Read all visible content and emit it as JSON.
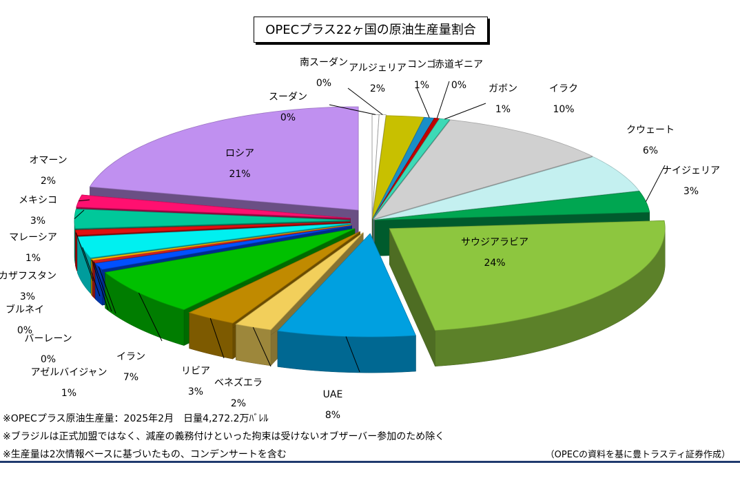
{
  "chart_data": {
    "type": "pie",
    "title": "OPECプラス22ヶ国の原油生産量割合",
    "slices": [
      {
        "name": "スーダン",
        "label": "0%",
        "value": 0.4,
        "color": "#ffffff"
      },
      {
        "name": "南スーダン",
        "label": "0%",
        "value": 0.4,
        "color": "#ffffff"
      },
      {
        "name": "アルジェリア",
        "label": "2%",
        "value": 2.2,
        "color": "#c8c000"
      },
      {
        "name": "コンゴ",
        "label": "1%",
        "value": 0.6,
        "color": "#1a8ec7"
      },
      {
        "name": "赤道ギニア",
        "label": "0%",
        "value": 0.3,
        "color": "#c00000"
      },
      {
        "name": "ガボン",
        "label": "1%",
        "value": 0.6,
        "color": "#3dd9b6"
      },
      {
        "name": "イラク",
        "label": "10%",
        "value": 10.1,
        "color": "#d0d0d0"
      },
      {
        "name": "クウェート",
        "label": "6%",
        "value": 5.9,
        "color": "#c4f0f0"
      },
      {
        "name": "ナイジェリア",
        "label": "3%",
        "value": 3.3,
        "color": "#00a651"
      },
      {
        "name": "サウジアラビア",
        "label": "24%",
        "value": 23.6,
        "color": "#8dc63f"
      },
      {
        "name": "UAE",
        "label": "8%",
        "value": 8.1,
        "color": "#00a0e0"
      },
      {
        "name": "ベネズエラ",
        "label": "2%",
        "value": 2.2,
        "color": "#f2cf5b"
      },
      {
        "name": "リビア",
        "label": "3%",
        "value": 3.0,
        "color": "#c08a00"
      },
      {
        "name": "イラン",
        "label": "7%",
        "value": 7.4,
        "color": "#00c000"
      },
      {
        "name": "アゼルバイジャン",
        "label": "1%",
        "value": 1.0,
        "color": "#0050ff"
      },
      {
        "name": "バーレーン",
        "label": "0%",
        "value": 0.4,
        "color": "#d02020"
      },
      {
        "name": "ブルネイ",
        "label": "0%",
        "value": 0.2,
        "color": "#ffc000"
      },
      {
        "name": "カザフスタン",
        "label": "3%",
        "value": 3.3,
        "color": "#00f0f0"
      },
      {
        "name": "マレーシア",
        "label": "1%",
        "value": 0.8,
        "color": "#e01010"
      },
      {
        "name": "メキシコ",
        "label": "3%",
        "value": 3.0,
        "color": "#00c89a"
      },
      {
        "name": "オマーン",
        "label": "2%",
        "value": 1.9,
        "color": "#ff1070"
      },
      {
        "name": "ロシア",
        "label": "21%",
        "value": 21.4,
        "color": "#c090f0"
      }
    ]
  },
  "notes": [
    "※OPECプラス原油生産量：2025年2月　日量4,272.2万ﾊﾞﾚﾙ",
    "※ブラジルは正式加盟ではなく、減産の義務付けといった拘束は受けないオブザーバー参加のため除く",
    "※生産量は2次情報ベースに基づいたもの、コンデンサートを含む"
  ],
  "source": "（OPECの資料を基に豊トラスティ証券作成）"
}
